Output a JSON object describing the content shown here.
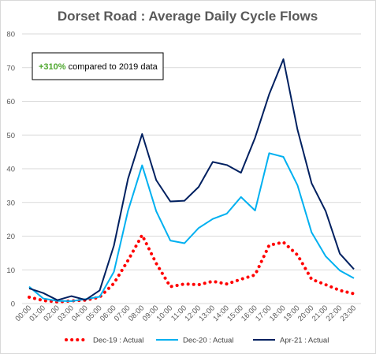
{
  "chart_data": {
    "type": "line",
    "title": "Dorset Road : Average Daily Cycle Flows",
    "xlabel": "",
    "ylabel": "",
    "ylim": [
      0,
      80
    ],
    "yticks": [
      0,
      10,
      20,
      30,
      40,
      50,
      60,
      70,
      80
    ],
    "grid": true,
    "legend_position": "bottom",
    "annotation": {
      "percent": "+310%",
      "text": " compared to 2019 data"
    },
    "categories": [
      "00:00",
      "01:00",
      "02:00",
      "03:00",
      "04:00",
      "05:00",
      "06:00",
      "07:00",
      "08:00",
      "09:00",
      "10:00",
      "11:00",
      "12:00",
      "13:00",
      "14:00",
      "15:00",
      "16:00",
      "17:00",
      "18:00",
      "19:00",
      "20:00",
      "21:00",
      "22:00",
      "23:00"
    ],
    "series": [
      {
        "name": "Dec-19 : Actual",
        "color": "#ff0000",
        "style": "dotted",
        "values": [
          1.9,
          0.9,
          0.5,
          0.8,
          1.0,
          1.9,
          6.0,
          12.8,
          20.3,
          11.9,
          5.0,
          5.8,
          5.6,
          6.6,
          5.8,
          7.2,
          8.5,
          17.3,
          18.2,
          14.4,
          7.2,
          5.6,
          3.9,
          2.9
        ]
      },
      {
        "name": "Dec-20 : Actual",
        "color": "#00b0f0",
        "style": "solid",
        "values": [
          5.0,
          1.5,
          0.8,
          0.7,
          1.3,
          2.0,
          9.4,
          27.5,
          41.0,
          27.4,
          18.7,
          17.9,
          22.4,
          25.1,
          26.7,
          31.6,
          27.6,
          44.6,
          43.5,
          35.1,
          21.1,
          14.0,
          9.8,
          7.5
        ]
      },
      {
        "name": "Apr-21 : Actual",
        "color": "#002060",
        "style": "solid",
        "values": [
          4.5,
          3.1,
          1.0,
          2.2,
          1.1,
          3.9,
          17.2,
          37.0,
          50.3,
          36.6,
          30.3,
          30.5,
          34.6,
          42.0,
          41.1,
          38.8,
          49.2,
          62.1,
          72.5,
          51.6,
          35.7,
          27.4,
          14.8,
          10.2
        ]
      }
    ]
  }
}
